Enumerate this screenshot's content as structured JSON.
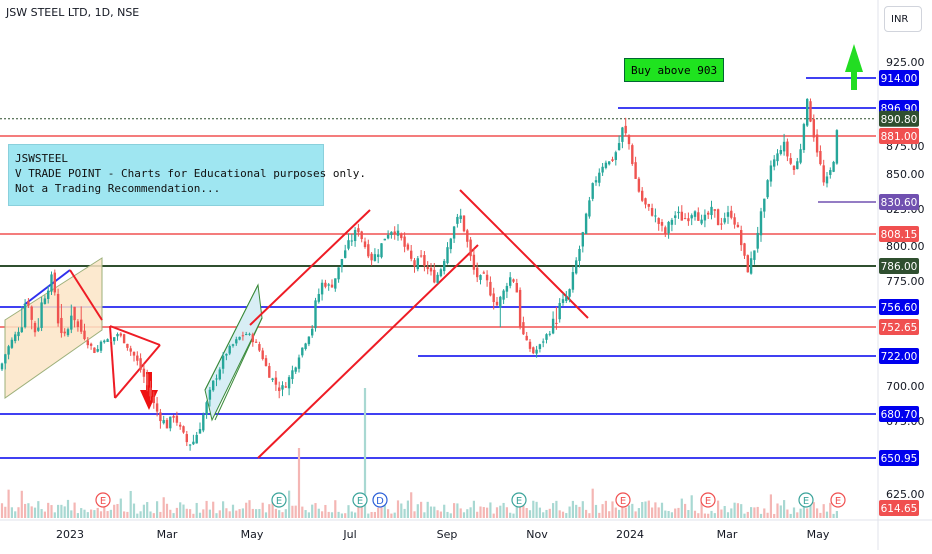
{
  "header": {
    "symbol_title": "JSW STEEL LTD, 1D, NSE"
  },
  "toolbar": {
    "currency": "INR"
  },
  "note": {
    "line1": "JSWSTEEL",
    "line2": "V TRADE POINT - Charts for Educational purposes only.",
    "line3": "Not a Trading Recommendation..."
  },
  "buy_label": "Buy above 903",
  "colors": {
    "up": "#26a69a",
    "down": "#ef5350",
    "support_blue": "#0000ee",
    "resist_red": "#f05050",
    "dark_green_line": "#2f4f2f",
    "trend_red": "#ee1c25",
    "arrow_green": "#22dd22"
  },
  "chart_data": {
    "type": "candlestick",
    "title": "JSW STEEL LTD, 1D, NSE",
    "x_tick_labels": [
      "2023",
      "Mar",
      "May",
      "Jul",
      "Sep",
      "Nov",
      "2024",
      "Mar",
      "May"
    ],
    "y_tick_labels": [
      "925.00",
      "875.00",
      "850.00",
      "825.00",
      "800.00",
      "775.00",
      "700.00",
      "675.00",
      "625.00"
    ],
    "ylim": [
      610,
      935
    ],
    "close_path": [
      [
        0,
        712
      ],
      [
        10,
        735
      ],
      [
        20,
        752
      ],
      [
        27,
        762
      ],
      [
        35,
        748
      ],
      [
        45,
        765
      ],
      [
        52,
        778
      ],
      [
        58,
        755
      ],
      [
        64,
        742
      ],
      [
        72,
        758
      ],
      [
        80,
        750
      ],
      [
        88,
        736
      ],
      [
        96,
        725
      ],
      [
        103,
        742
      ],
      [
        110,
        736
      ],
      [
        117,
        746
      ],
      [
        123,
        740
      ],
      [
        130,
        728
      ],
      [
        137,
        718
      ],
      [
        145,
        705
      ],
      [
        152,
        690
      ],
      [
        160,
        678
      ],
      [
        167,
        672
      ],
      [
        174,
        680
      ],
      [
        181,
        668
      ],
      [
        188,
        660
      ],
      [
        194,
        662
      ],
      [
        200,
        672
      ],
      [
        206,
        686
      ],
      [
        212,
        700
      ],
      [
        219,
        712
      ],
      [
        226,
        725
      ],
      [
        233,
        734
      ],
      [
        240,
        742
      ],
      [
        247,
        746
      ],
      [
        254,
        738
      ],
      [
        261,
        725
      ],
      [
        267,
        712
      ],
      [
        274,
        703
      ],
      [
        281,
        697
      ],
      [
        288,
        704
      ],
      [
        295,
        715
      ],
      [
        302,
        730
      ],
      [
        309,
        745
      ],
      [
        316,
        760
      ],
      [
        323,
        775
      ],
      [
        330,
        770
      ],
      [
        337,
        780
      ],
      [
        344,
        796
      ],
      [
        351,
        804
      ],
      [
        358,
        812
      ],
      [
        365,
        800
      ],
      [
        372,
        791
      ],
      [
        379,
        797
      ],
      [
        386,
        808
      ],
      [
        393,
        812
      ],
      [
        400,
        806
      ],
      [
        407,
        796
      ],
      [
        414,
        786
      ],
      [
        421,
        791
      ],
      [
        428,
        783
      ],
      [
        435,
        776
      ],
      [
        442,
        786
      ],
      [
        449,
        804
      ],
      [
        455,
        816
      ],
      [
        461,
        820
      ],
      [
        467,
        803
      ],
      [
        473,
        784
      ],
      [
        479,
        776
      ],
      [
        485,
        778
      ],
      [
        491,
        766
      ],
      [
        497,
        758
      ],
      [
        503,
        766
      ],
      [
        509,
        778
      ],
      [
        515,
        775
      ],
      [
        521,
        750
      ],
      [
        527,
        735
      ],
      [
        533,
        725
      ],
      [
        539,
        731
      ],
      [
        545,
        742
      ],
      [
        551,
        750
      ],
      [
        557,
        756
      ],
      [
        563,
        760
      ],
      [
        569,
        766
      ],
      [
        575,
        786
      ],
      [
        581,
        802
      ],
      [
        587,
        822
      ],
      [
        593,
        842
      ],
      [
        599,
        852
      ],
      [
        605,
        862
      ],
      [
        611,
        860
      ],
      [
        617,
        872
      ],
      [
        623,
        886
      ],
      [
        629,
        876
      ],
      [
        635,
        848
      ],
      [
        641,
        833
      ],
      [
        647,
        826
      ],
      [
        653,
        822
      ],
      [
        659,
        815
      ],
      [
        665,
        808
      ],
      [
        671,
        818
      ],
      [
        677,
        822
      ],
      [
        683,
        818
      ],
      [
        689,
        820
      ],
      [
        695,
        826
      ],
      [
        701,
        815
      ],
      [
        707,
        820
      ],
      [
        713,
        825
      ],
      [
        719,
        814
      ],
      [
        725,
        820
      ],
      [
        731,
        822
      ],
      [
        737,
        813
      ],
      [
        743,
        796
      ],
      [
        747,
        782
      ],
      [
        753,
        793
      ],
      [
        759,
        815
      ],
      [
        765,
        832
      ],
      [
        771,
        858
      ],
      [
        777,
        866
      ],
      [
        783,
        878
      ],
      [
        789,
        862
      ],
      [
        795,
        852
      ],
      [
        801,
        875
      ],
      [
        806,
        902
      ],
      [
        812,
        888
      ],
      [
        818,
        868
      ],
      [
        824,
        842
      ],
      [
        829,
        848
      ],
      [
        835,
        868
      ],
      [
        840,
        905
      ]
    ],
    "horizontal_levels": [
      {
        "value": 914.0,
        "label": "914.00",
        "color": "#0000ee"
      },
      {
        "value": 896.9,
        "label": "896.90",
        "color": "#0000ee"
      },
      {
        "value": 890.8,
        "label": "890.80",
        "color": "#2f4f2f"
      },
      {
        "value": 881.0,
        "label": "881.00",
        "color": "#f05050"
      },
      {
        "value": 830.6,
        "label": "830.60",
        "color": "#7050b0"
      },
      {
        "value": 808.15,
        "label": "808.15",
        "color": "#f05050"
      },
      {
        "value": 786.0,
        "label": "786.00",
        "color": "#2f4f2f"
      },
      {
        "value": 756.6,
        "label": "756.60",
        "color": "#0000ee"
      },
      {
        "value": 752.65,
        "label": "752.65",
        "color": "#f05050"
      },
      {
        "value": 722.0,
        "label": "722.00",
        "color": "#0000ee"
      },
      {
        "value": 680.7,
        "label": "680.70",
        "color": "#0000ee"
      },
      {
        "value": 650.95,
        "label": "650.95",
        "color": "#0000ee"
      },
      {
        "value": 614.65,
        "label": "614.65",
        "color": "#f05050"
      }
    ],
    "event_markers": [
      "E",
      "E",
      "E",
      "D",
      "E",
      "E",
      "E",
      "E",
      "E"
    ]
  }
}
